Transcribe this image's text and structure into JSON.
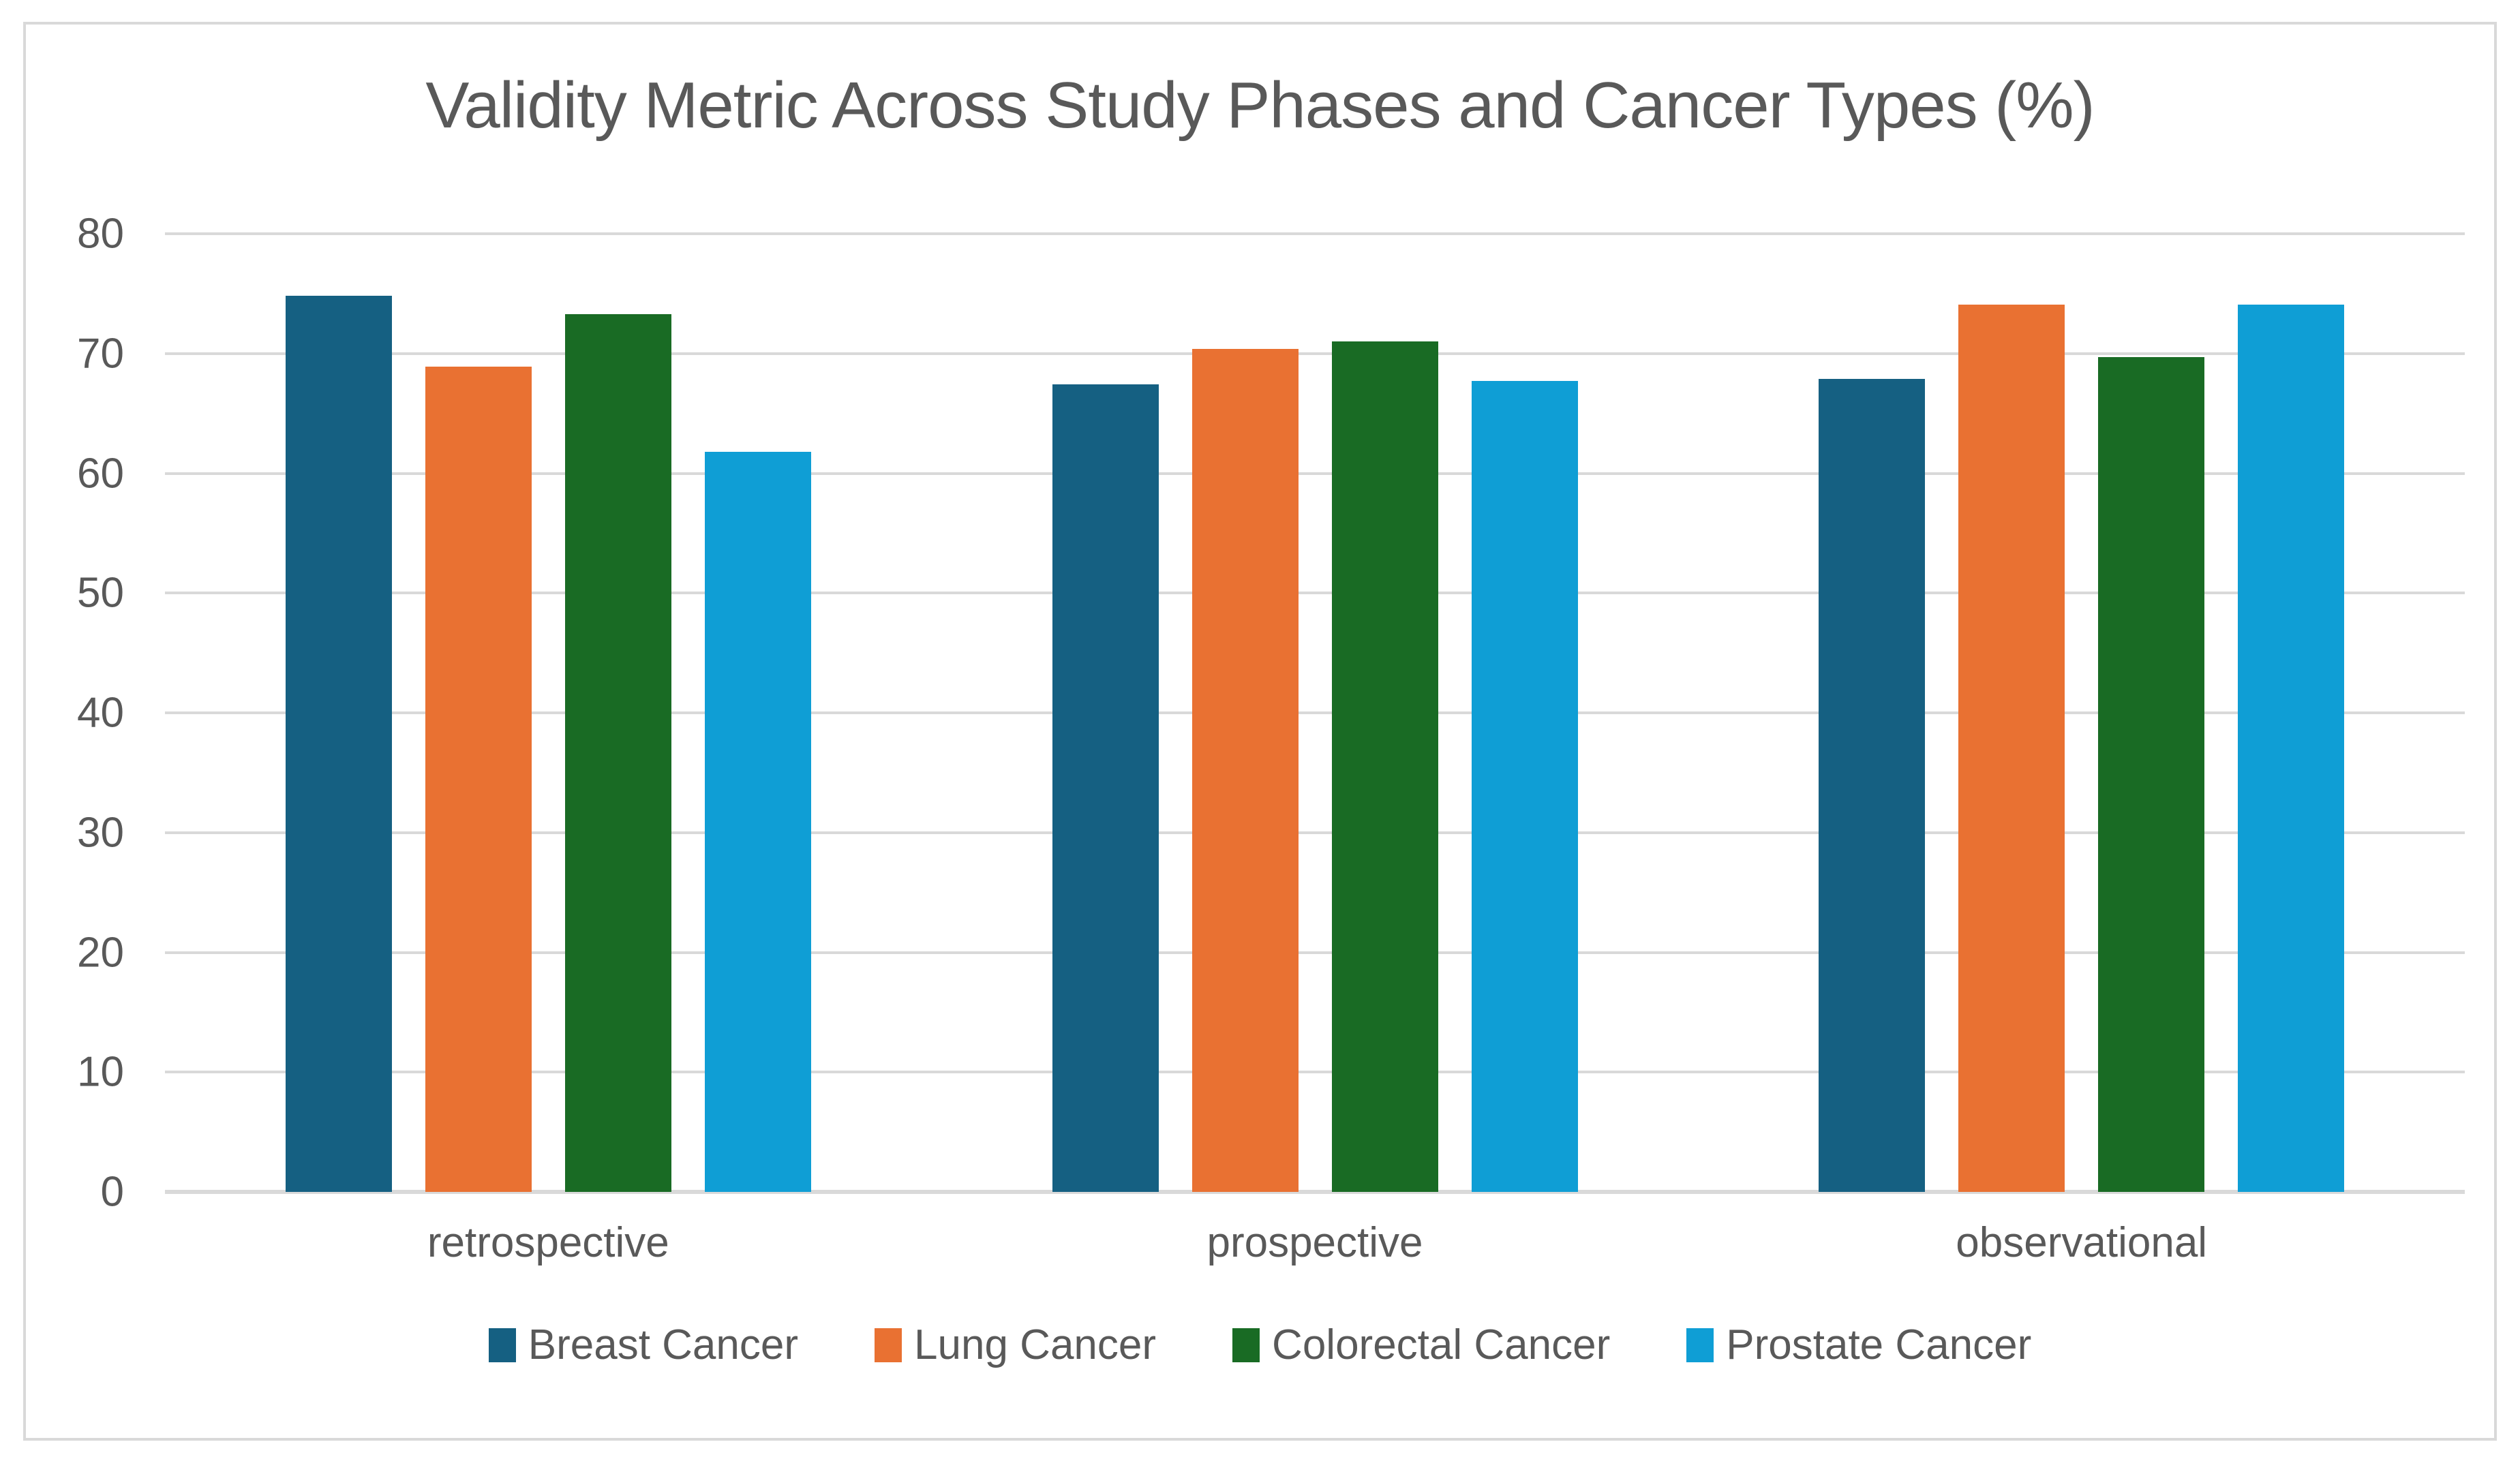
{
  "chart_data": {
    "type": "bar",
    "title": "Validity Metric Across Study Phases and Cancer Types (%)",
    "categories": [
      "retrospective",
      "prospective",
      "observational"
    ],
    "series": [
      {
        "name": "Breast Cancer",
        "color": "#156082",
        "values": [
          74.8,
          67.4,
          67.9
        ]
      },
      {
        "name": "Lung Cancer",
        "color": "#E97132",
        "values": [
          68.9,
          70.4,
          74.1
        ]
      },
      {
        "name": "Colorectal Cancer",
        "color": "#196B24",
        "values": [
          73.3,
          71.0,
          69.7
        ]
      },
      {
        "name": "Prostate Cancer",
        "color": "#0F9ED5",
        "values": [
          61.8,
          67.7,
          74.1
        ]
      }
    ],
    "ylim": [
      0,
      80
    ],
    "yticks": [
      0,
      10,
      20,
      30,
      40,
      50,
      60,
      70,
      80
    ],
    "grid": "horizontal",
    "legend_position": "bottom",
    "colors": {
      "text": "#595959",
      "gridline": "#D9D9D9",
      "border": "#D9D9D9",
      "background": "#FFFFFF"
    }
  }
}
